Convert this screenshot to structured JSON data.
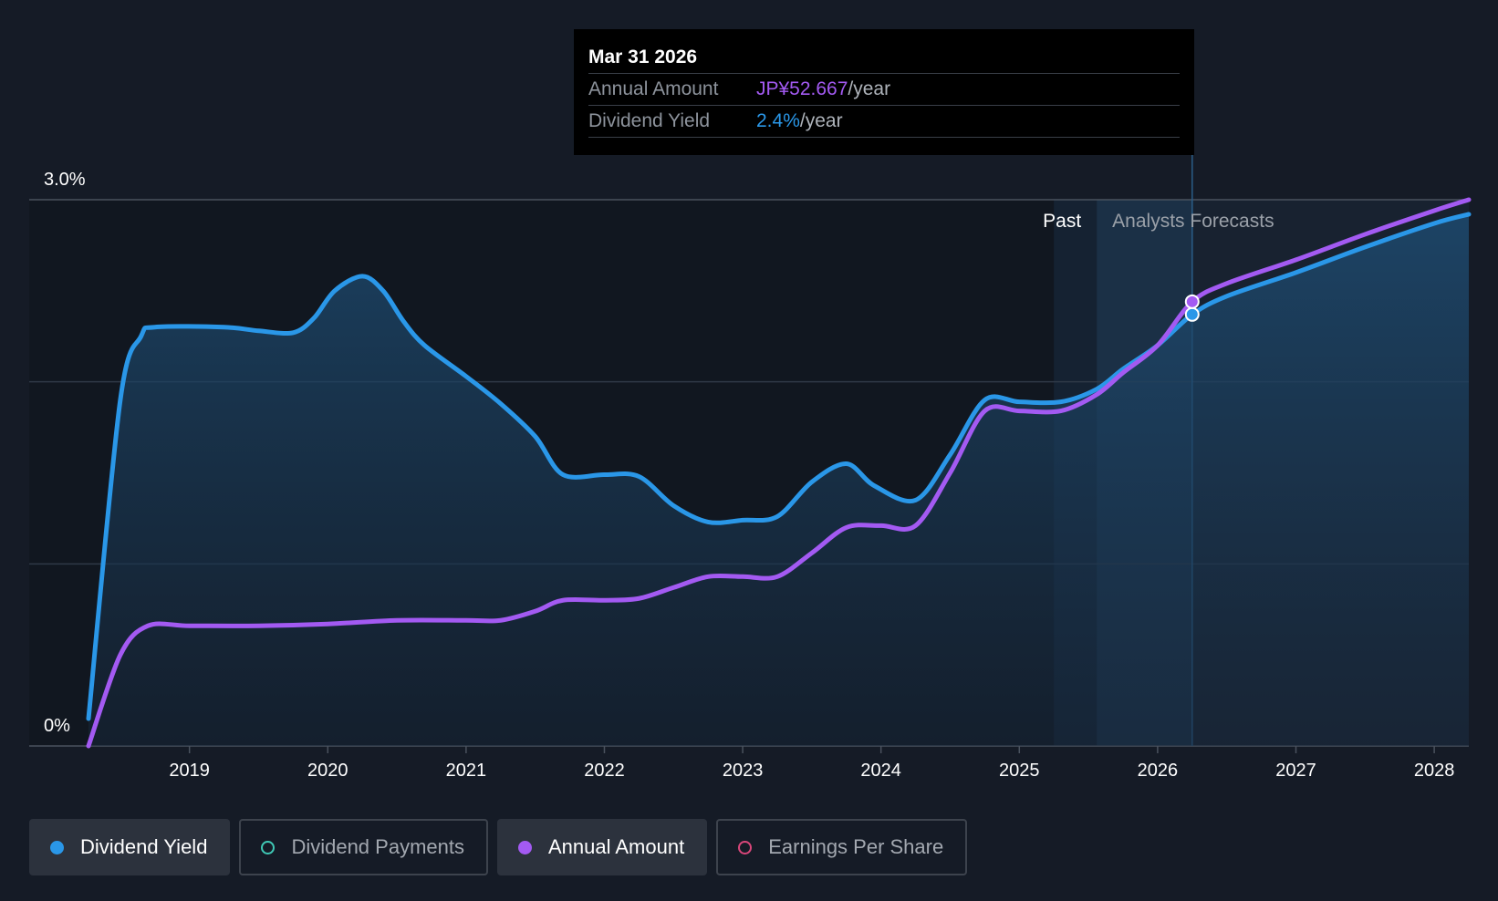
{
  "tooltip": {
    "date": "Mar 31 2026",
    "annual_amount_label": "Annual Amount",
    "annual_amount_value": "JP¥52.667",
    "annual_amount_unit": "/year",
    "dividend_yield_label": "Dividend Yield",
    "dividend_yield_value": "2.4%",
    "dividend_yield_unit": "/year"
  },
  "legend": {
    "items": [
      {
        "label": "Dividend Yield",
        "color": "#2a97e8",
        "active": true
      },
      {
        "label": "Dividend Payments",
        "color": "#3fc8b5",
        "active": false
      },
      {
        "label": "Annual Amount",
        "color": "#a35af2",
        "active": true
      },
      {
        "label": "Earnings Per Share",
        "color": "#d9467a",
        "active": false
      }
    ]
  },
  "colors": {
    "background": "#151b26",
    "yield": "#2a97e8",
    "amount": "#a35af2",
    "grid": "#2f3947"
  },
  "chart_data": {
    "type": "line",
    "title": "",
    "xlabel": "",
    "ylabel": "",
    "y_tick_labels": [
      "3.0%",
      "0%"
    ],
    "ylim": [
      0,
      3.0
    ],
    "xlim": [
      2018.27,
      2028.25
    ],
    "x_ticks": [
      2019,
      2020,
      2021,
      2022,
      2023,
      2024,
      2025,
      2026,
      2027,
      2028
    ],
    "x_tick_labels": [
      "2019",
      "2020",
      "2021",
      "2022",
      "2023",
      "2024",
      "2025",
      "2026",
      "2027",
      "2028"
    ],
    "past_label": "Past",
    "forecast_label": "Analysts Forecasts",
    "forecast_start": 2025.56,
    "past_band_start": 2025.25,
    "highlight_x": 2026.25,
    "series": [
      {
        "name": "Dividend Yield",
        "color": "#2a97e8",
        "points": [
          [
            2018.27,
            0.15
          ],
          [
            2018.5,
            1.9
          ],
          [
            2018.65,
            2.25
          ],
          [
            2018.75,
            2.3
          ],
          [
            2019.25,
            2.3
          ],
          [
            2019.5,
            2.28
          ],
          [
            2019.75,
            2.27
          ],
          [
            2019.9,
            2.35
          ],
          [
            2020.05,
            2.5
          ],
          [
            2020.25,
            2.58
          ],
          [
            2020.4,
            2.5
          ],
          [
            2020.55,
            2.33
          ],
          [
            2020.7,
            2.2
          ],
          [
            2021.0,
            2.03
          ],
          [
            2021.25,
            1.88
          ],
          [
            2021.5,
            1.7
          ],
          [
            2021.7,
            1.49
          ],
          [
            2022.0,
            1.49
          ],
          [
            2022.25,
            1.48
          ],
          [
            2022.5,
            1.32
          ],
          [
            2022.75,
            1.23
          ],
          [
            2023.0,
            1.24
          ],
          [
            2023.25,
            1.26
          ],
          [
            2023.5,
            1.45
          ],
          [
            2023.75,
            1.55
          ],
          [
            2023.95,
            1.43
          ],
          [
            2024.25,
            1.35
          ],
          [
            2024.5,
            1.6
          ],
          [
            2024.75,
            1.9
          ],
          [
            2025.0,
            1.89
          ],
          [
            2025.3,
            1.89
          ],
          [
            2025.56,
            1.96
          ],
          [
            2025.75,
            2.07
          ],
          [
            2026.0,
            2.2
          ],
          [
            2026.25,
            2.37
          ],
          [
            2026.5,
            2.47
          ],
          [
            2027.0,
            2.6
          ],
          [
            2027.5,
            2.74
          ],
          [
            2028.0,
            2.87
          ],
          [
            2028.25,
            2.92
          ]
        ]
      },
      {
        "name": "Annual Amount",
        "color": "#a35af2",
        "points": [
          [
            2018.27,
            0.0
          ],
          [
            2018.5,
            0.5
          ],
          [
            2018.7,
            0.66
          ],
          [
            2019.0,
            0.66
          ],
          [
            2019.5,
            0.66
          ],
          [
            2020.0,
            0.67
          ],
          [
            2020.5,
            0.69
          ],
          [
            2021.0,
            0.69
          ],
          [
            2021.25,
            0.69
          ],
          [
            2021.5,
            0.74
          ],
          [
            2021.7,
            0.8
          ],
          [
            2022.0,
            0.8
          ],
          [
            2022.25,
            0.81
          ],
          [
            2022.5,
            0.87
          ],
          [
            2022.75,
            0.93
          ],
          [
            2023.0,
            0.93
          ],
          [
            2023.25,
            0.93
          ],
          [
            2023.5,
            1.06
          ],
          [
            2023.75,
            1.2
          ],
          [
            2024.0,
            1.21
          ],
          [
            2024.25,
            1.21
          ],
          [
            2024.5,
            1.5
          ],
          [
            2024.75,
            1.84
          ],
          [
            2025.0,
            1.84
          ],
          [
            2025.3,
            1.84
          ],
          [
            2025.56,
            1.93
          ],
          [
            2025.75,
            2.05
          ],
          [
            2026.0,
            2.2
          ],
          [
            2026.25,
            2.44
          ],
          [
            2026.5,
            2.54
          ],
          [
            2027.0,
            2.67
          ],
          [
            2027.5,
            2.81
          ],
          [
            2028.0,
            2.94
          ],
          [
            2028.25,
            3.0
          ]
        ]
      }
    ]
  }
}
